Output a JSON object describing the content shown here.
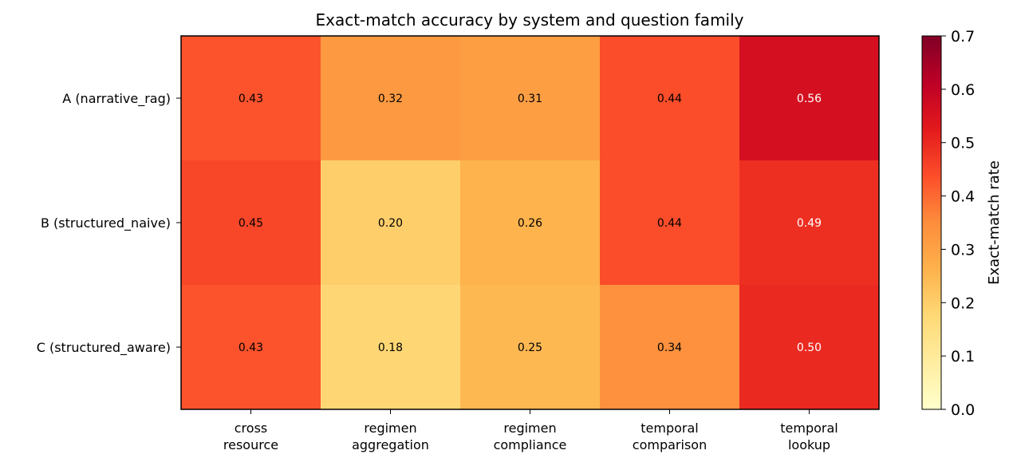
{
  "chart_data": {
    "type": "heatmap",
    "title": "Exact-match accuracy by system and question family",
    "rows": [
      "A (narrative_rag)",
      "B (structured_naive)",
      "C (structured_aware)"
    ],
    "columns": [
      [
        "cross",
        "resource"
      ],
      [
        "regimen",
        "aggregation"
      ],
      [
        "regimen",
        "compliance"
      ],
      [
        "temporal",
        "comparison"
      ],
      [
        "temporal",
        "lookup"
      ]
    ],
    "values": [
      [
        0.43,
        0.32,
        0.31,
        0.44,
        0.56
      ],
      [
        0.45,
        0.2,
        0.26,
        0.44,
        0.49
      ],
      [
        0.43,
        0.18,
        0.25,
        0.34,
        0.5
      ]
    ],
    "value_labels": [
      [
        "0.43",
        "0.32",
        "0.31",
        "0.44",
        "0.56"
      ],
      [
        "0.45",
        "0.20",
        "0.26",
        "0.44",
        "0.49"
      ],
      [
        "0.43",
        "0.18",
        "0.25",
        "0.34",
        "0.50"
      ]
    ],
    "colorbar": {
      "label": "Exact-match rate",
      "range": [
        0.0,
        0.7
      ],
      "ticks": [
        "0.0",
        "0.1",
        "0.2",
        "0.3",
        "0.4",
        "0.5",
        "0.6",
        "0.7"
      ],
      "colormap": "YlOrRd"
    }
  }
}
